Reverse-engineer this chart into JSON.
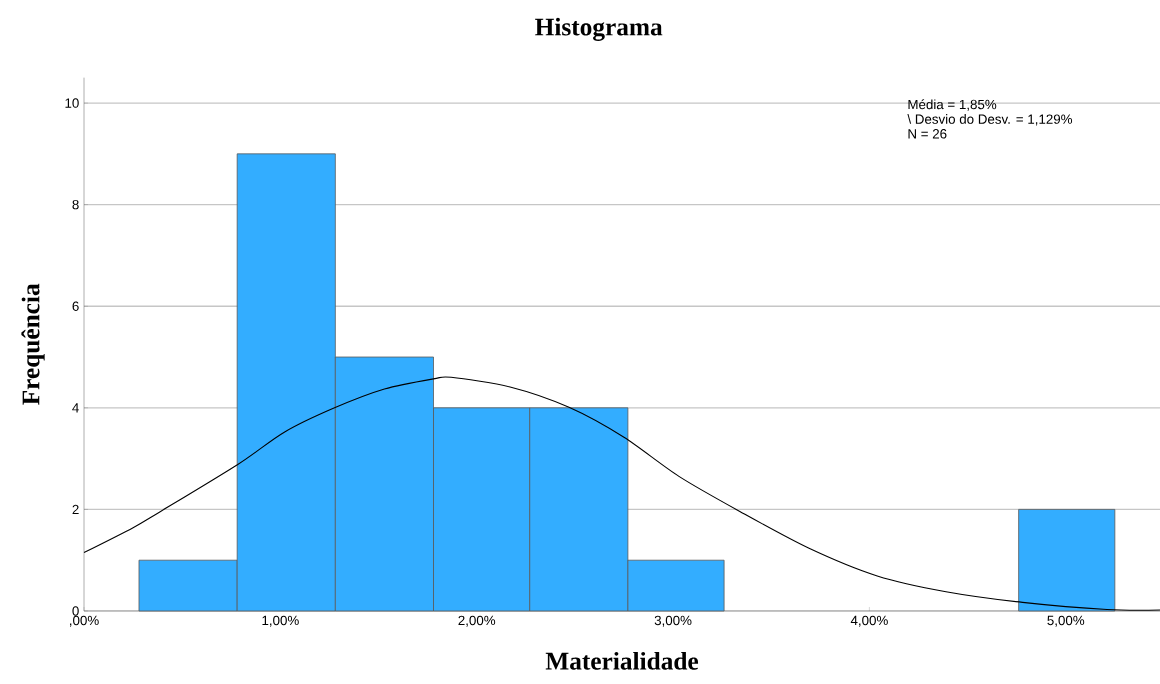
{
  "chart_data": {
    "type": "histogram",
    "title": "Histograma",
    "xlabel": "Materialidade",
    "ylabel": "Frequência",
    "annotations": [
      "Média = 1,85%",
      "\\ Desvio do Desv. = 1,129%",
      "N = 26"
    ],
    "series": [
      {
        "color": "#33adff",
        "bins": [
          0.28,
          0.78,
          1.28,
          1.78,
          2.27,
          2.77,
          3.26,
          4.76,
          5.25
        ],
        "values": [
          1,
          9,
          5,
          4,
          4,
          1,
          0,
          2
        ]
      },
      {
        "type": "line",
        "color": "#000000",
        "x": [
          0,
          0.25,
          0.39,
          0.785,
          1.02,
          1.27,
          1.53,
          1.78,
          1.87,
          2.17,
          2.47,
          2.75,
          3.03,
          3.34,
          3.69,
          4.04,
          4.39,
          4.78,
          5.21,
          5.48
        ],
        "values": [
          1.15,
          1.64,
          1.96,
          2.89,
          3.52,
          3.99,
          4.37,
          4.57,
          4.6,
          4.41,
          4.01,
          3.42,
          2.65,
          1.96,
          1.24,
          0.69,
          0.38,
          0.17,
          0.03,
          0.02
        ]
      }
    ],
    "xlim": [
      0,
      5.48
    ],
    "ylim": [
      0,
      10.5
    ],
    "xticks": [
      {
        "value": 0,
        "label": ",00%"
      },
      {
        "value": 1,
        "label": "1,00%"
      },
      {
        "value": 2,
        "label": "2,00%"
      },
      {
        "value": 3,
        "label": "3,00%"
      },
      {
        "value": 4,
        "label": "4,00%"
      },
      {
        "value": 5,
        "label": "5,00%"
      }
    ],
    "yticks": [
      0,
      2,
      4,
      6,
      8,
      10
    ],
    "grid": "y",
    "line_style": "solid",
    "marker": "none"
  }
}
